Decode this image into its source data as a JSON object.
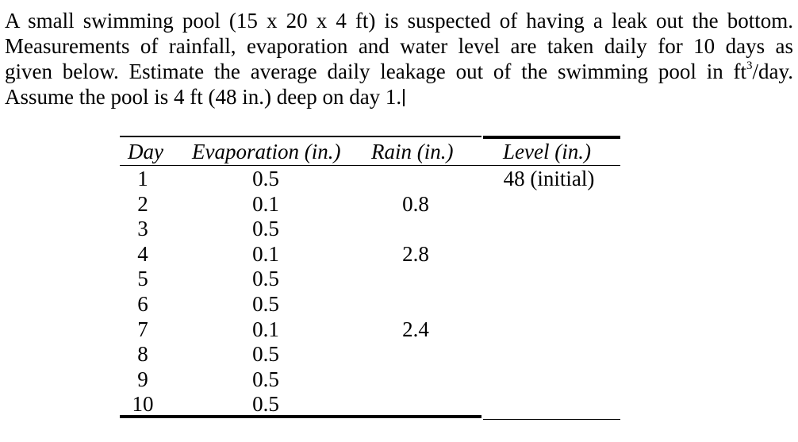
{
  "problem": {
    "line1": "A small swimming pool (15 x 20 x 4 ft) is suspected of having a leak out the bottom.",
    "line2": "Measurements of rainfall, evaporation and water level are taken daily for 10 days as",
    "line3_a": "given below. Estimate the average daily leakage out of the swimming pool in ft",
    "line3_exp": "3",
    "line3_b": "/day.",
    "line4": "Assume the pool is 4 ft (48 in.) deep on day 1."
  },
  "table": {
    "headers": {
      "day": "Day",
      "evaporation": "Evaporation (in.)",
      "rain": "Rain (in.)",
      "level": "Level (in.)"
    },
    "rows": [
      {
        "day": "1",
        "evaporation": "0.5",
        "rain": "",
        "level": "48 (initial)"
      },
      {
        "day": "2",
        "evaporation": "0.1",
        "rain": "0.8",
        "level": ""
      },
      {
        "day": "3",
        "evaporation": "0.5",
        "rain": "",
        "level": ""
      },
      {
        "day": "4",
        "evaporation": "0.1",
        "rain": "2.8",
        "level": ""
      },
      {
        "day": "5",
        "evaporation": "0.5",
        "rain": "",
        "level": ""
      },
      {
        "day": "6",
        "evaporation": "0.5",
        "rain": "",
        "level": ""
      },
      {
        "day": "7",
        "evaporation": "0.1",
        "rain": "2.4",
        "level": ""
      },
      {
        "day": "8",
        "evaporation": "0.5",
        "rain": "",
        "level": ""
      },
      {
        "day": "9",
        "evaporation": "0.5",
        "rain": "",
        "level": ""
      },
      {
        "day": "10",
        "evaporation": "0.5",
        "rain": "",
        "level": ""
      }
    ]
  }
}
